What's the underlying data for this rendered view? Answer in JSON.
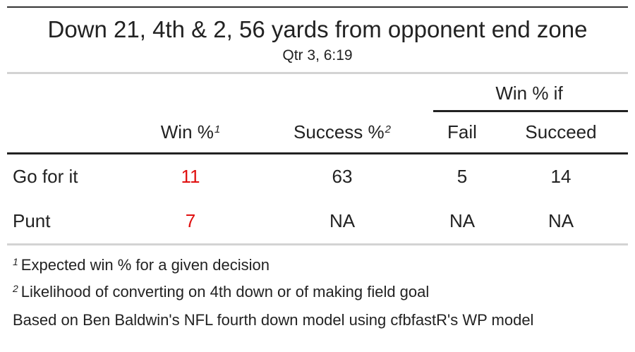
{
  "title": "Down 21, 4th & 2, 56 yards from opponent end zone",
  "subtitle": "Qtr 3, 6:19",
  "spanner": "Win % if",
  "columns": {
    "win": "Win %",
    "win_mark": "1",
    "success": "Success %",
    "success_mark": "2",
    "fail": "Fail",
    "succeed": "Succeed"
  },
  "rows": [
    {
      "decision": "Go for it",
      "win": "11",
      "success": "63",
      "fail": "5",
      "succeed": "14"
    },
    {
      "decision": "Punt",
      "win": "7",
      "success": "NA",
      "fail": "NA",
      "succeed": "NA"
    }
  ],
  "footnotes": [
    {
      "mark": "1",
      "text": "Expected win % for a given decision"
    },
    {
      "mark": "2",
      "text": "Likelihood of converting on 4th down or of making field goal"
    }
  ],
  "source_note": "Based on Ben Baldwin's NFL fourth down model using cfbfastR's WP model",
  "colors": {
    "highlight": "#e01010",
    "rule_heavy": "#222222",
    "rule_light": "#d3d3d3"
  }
}
